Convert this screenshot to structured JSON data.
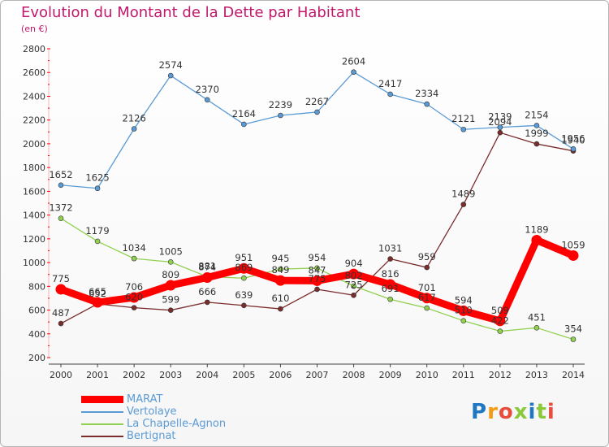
{
  "title": "Evolution du Montant de la Dette par Habitant",
  "subtitle": "(en €)",
  "brand": "Proxiti",
  "chart_data": {
    "type": "line",
    "title": "Evolution du Montant de la Dette par Habitant",
    "subtitle": "(en €)",
    "x": [
      "2000",
      "2001",
      "2002",
      "2003",
      "2004",
      "2005",
      "2006",
      "2007",
      "2008",
      "2009",
      "2010",
      "2011",
      "2012",
      "2013",
      "2014"
    ],
    "ylim": [
      200,
      2800
    ],
    "yticks": [
      200,
      400,
      600,
      800,
      1000,
      1200,
      1400,
      1600,
      1800,
      2000,
      2200,
      2400,
      2600,
      2800
    ],
    "grid": false,
    "legend_position": "bottom",
    "series": [
      {
        "name": "MARAT",
        "color": "#ff0000",
        "values": [
          775,
          665,
          706,
          809,
          874,
          951,
          849,
          847,
          904,
          816,
          701,
          594,
          509,
          1189,
          1059
        ]
      },
      {
        "name": "Vertolaye",
        "color": "#5b9bd5",
        "values": [
          1652,
          1625,
          2126,
          2574,
          2370,
          2164,
          2239,
          2267,
          2604,
          2417,
          2334,
          2121,
          2139,
          2154,
          1956
        ]
      },
      {
        "name": "La Chapelle-Agnon",
        "color": "#92d050",
        "values": [
          1372,
          1179,
          1034,
          1005,
          881,
          869,
          945,
          954,
          802,
          691,
          617,
          510,
          422,
          451,
          354
        ]
      },
      {
        "name": "Bertignat",
        "color": "#7b2c2c",
        "values": [
          487,
          652,
          620,
          599,
          666,
          639,
          610,
          775,
          725,
          1031,
          959,
          1489,
          2094,
          1999,
          1940
        ]
      }
    ]
  }
}
